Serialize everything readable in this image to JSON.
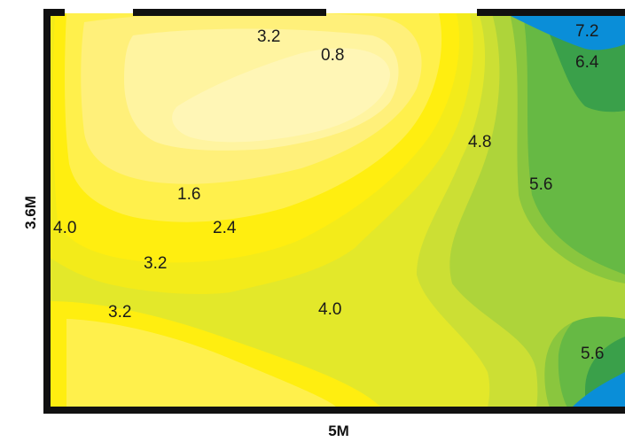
{
  "dimensions": {
    "width_label": "5M",
    "height_label": "3.6M"
  },
  "colors": {
    "level_0": "#fff6b6",
    "level_1": "#fff4a0",
    "level_2": "#fff07a",
    "level_3": "#fff04c",
    "level_4": "#ffee10",
    "level_5": "#f3eb1a",
    "level_6": "#e3e82a",
    "level_7": "#ccdf34",
    "level_8": "#aed43a",
    "level_9": "#8ac63e",
    "level_10": "#66b944",
    "level_11": "#3aa04a",
    "level_12": "#0a8ed8",
    "frame": "#111111"
  },
  "contour_labels": [
    {
      "text": "3.2"
    },
    {
      "text": "0.8"
    },
    {
      "text": "7.2"
    },
    {
      "text": "6.4"
    },
    {
      "text": "4.8"
    },
    {
      "text": "5.6"
    },
    {
      "text": "1.6"
    },
    {
      "text": "4.0"
    },
    {
      "text": "2.4"
    },
    {
      "text": "3.2"
    },
    {
      "text": "3.2"
    },
    {
      "text": "4.0"
    },
    {
      "text": "5.6"
    }
  ]
}
